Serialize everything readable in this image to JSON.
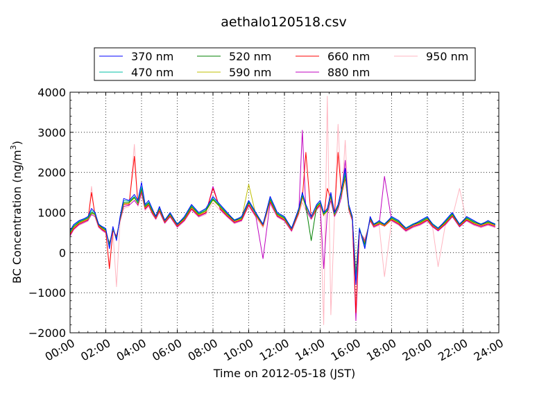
{
  "chart_data": {
    "type": "line",
    "title": "aethalo120518.csv",
    "xlabel": "Time on 2012-05-18 (JST)",
    "ylabel_main": "BC Concentration (ng/m",
    "ylabel_sup": "3",
    "ylabel_close": ")",
    "xlim": [
      0,
      24
    ],
    "ylim": [
      -2000,
      4000
    ],
    "x_ticks": [
      0,
      2,
      4,
      6,
      8,
      10,
      12,
      14,
      16,
      18,
      20,
      22,
      24
    ],
    "x_tick_labels": [
      "00:00",
      "02:00",
      "04:00",
      "06:00",
      "08:00",
      "10:00",
      "12:00",
      "14:00",
      "16:00",
      "18:00",
      "20:00",
      "22:00",
      "24:00"
    ],
    "y_ticks": [
      -2000,
      -1000,
      0,
      1000,
      2000,
      3000,
      4000
    ],
    "y_tick_labels": [
      "−2000",
      "−1000",
      "0",
      "1000",
      "2000",
      "3000",
      "4000"
    ],
    "grid": true,
    "legend_position": "top",
    "x_hours": [
      0.0,
      0.2,
      0.5,
      0.8,
      1.0,
      1.2,
      1.4,
      1.6,
      1.8,
      2.0,
      2.2,
      2.4,
      2.6,
      2.8,
      3.0,
      3.3,
      3.6,
      3.8,
      4.0,
      4.2,
      4.4,
      4.6,
      4.8,
      5.0,
      5.3,
      5.6,
      6.0,
      6.4,
      6.8,
      7.2,
      7.6,
      8.0,
      8.4,
      8.8,
      9.2,
      9.6,
      10.0,
      10.4,
      10.8,
      11.2,
      11.6,
      12.0,
      12.4,
      12.8,
      13.0,
      13.2,
      13.5,
      13.8,
      14.0,
      14.2,
      14.4,
      14.6,
      14.8,
      15.0,
      15.2,
      15.4,
      15.6,
      15.8,
      16.0,
      16.2,
      16.5,
      16.8,
      17.0,
      17.3,
      17.6,
      18.0,
      18.4,
      18.8,
      19.2,
      19.6,
      20.0,
      20.3,
      20.6,
      21.0,
      21.4,
      21.8,
      22.2,
      22.6,
      23.0,
      23.4,
      23.8
    ],
    "series": [
      {
        "name": "370 nm",
        "color": "#0000ff",
        "values": [
          550,
          700,
          800,
          850,
          900,
          1100,
          1000,
          700,
          650,
          600,
          100,
          650,
          300,
          900,
          1350,
          1300,
          1450,
          1300,
          1750,
          1200,
          1300,
          1100,
          900,
          1150,
          800,
          1000,
          700,
          900,
          1200,
          1000,
          1100,
          1400,
          1200,
          1000,
          800,
          900,
          1300,
          1000,
          700,
          1400,
          1000,
          900,
          600,
          1100,
          1500,
          1200,
          900,
          1200,
          1300,
          1000,
          1100,
          1500,
          1000,
          1200,
          1600,
          2100,
          1200,
          900,
          -800,
          600,
          100,
          900,
          700,
          800,
          700,
          900,
          800,
          600,
          700,
          800,
          900,
          700,
          600,
          800,
          1000,
          700,
          900,
          800,
          700,
          800,
          700
        ]
      },
      {
        "name": "470 nm",
        "color": "#00bfa5",
        "values": [
          520,
          680,
          780,
          840,
          880,
          1050,
          980,
          720,
          640,
          580,
          150,
          620,
          320,
          880,
          1300,
          1280,
          1400,
          1260,
          1650,
          1180,
          1260,
          1080,
          920,
          1120,
          820,
          980,
          720,
          880,
          1180,
          980,
          1080,
          1360,
          1180,
          980,
          820,
          880,
          1280,
          980,
          720,
          1360,
          980,
          880,
          620,
          1080,
          1460,
          1180,
          880,
          1180,
          1260,
          980,
          1080,
          1460,
          980,
          1180,
          1560,
          2000,
          1180,
          880,
          -700,
          620,
          150,
          880,
          720,
          780,
          720,
          880,
          780,
          620,
          720,
          780,
          880,
          720,
          620,
          780,
          980,
          720,
          880,
          780,
          720,
          780,
          720
        ]
      },
      {
        "name": "520 nm",
        "color": "#008000",
        "values": [
          500,
          650,
          760,
          820,
          860,
          1000,
          960,
          700,
          620,
          560,
          200,
          600,
          350,
          860,
          1250,
          1250,
          1380,
          1240,
          1600,
          1150,
          1240,
          1050,
          900,
          1100,
          800,
          960,
          700,
          860,
          1150,
          960,
          1050,
          1330,
          1150,
          960,
          800,
          860,
          1250,
          960,
          700,
          1330,
          960,
          860,
          600,
          1050,
          1430,
          1150,
          300,
          1150,
          1240,
          960,
          1050,
          1430,
          960,
          1150,
          1530,
          1950,
          1150,
          860,
          -600,
          600,
          200,
          860,
          700,
          760,
          700,
          860,
          760,
          600,
          700,
          760,
          860,
          700,
          600,
          760,
          960,
          700,
          860,
          760,
          700,
          760,
          700
        ]
      },
      {
        "name": "590 nm",
        "color": "#bfbf00",
        "values": [
          480,
          630,
          740,
          800,
          840,
          980,
          940,
          680,
          600,
          540,
          220,
          580,
          370,
          840,
          1220,
          1230,
          1360,
          1220,
          1580,
          1130,
          1220,
          1030,
          880,
          1080,
          780,
          940,
          680,
          840,
          1130,
          940,
          1030,
          1310,
          1130,
          940,
          780,
          840,
          1700,
          940,
          680,
          1310,
          940,
          840,
          580,
          1030,
          1400,
          1130,
          880,
          1130,
          1220,
          940,
          1030,
          1400,
          940,
          1130,
          1500,
          1900,
          1130,
          840,
          -500,
          580,
          220,
          840,
          680,
          740,
          680,
          840,
          740,
          580,
          680,
          740,
          840,
          680,
          580,
          740,
          940,
          680,
          840,
          740,
          680,
          740,
          680
        ]
      },
      {
        "name": "660 nm",
        "color": "#ff0000",
        "values": [
          450,
          600,
          720,
          780,
          820,
          1500,
          920,
          660,
          580,
          520,
          -400,
          560,
          400,
          820,
          1200,
          1200,
          2400,
          1200,
          1550,
          1100,
          1200,
          1000,
          860,
          1050,
          760,
          920,
          660,
          820,
          1100,
          920,
          1000,
          1600,
          1100,
          920,
          760,
          820,
          1200,
          920,
          660,
          1280,
          920,
          820,
          560,
          1000,
          1350,
          2500,
          860,
          1100,
          1200,
          920,
          1600,
          1350,
          920,
          2500,
          1450,
          1850,
          1100,
          820,
          -1500,
          560,
          250,
          820,
          660,
          720,
          660,
          820,
          720,
          560,
          660,
          720,
          820,
          660,
          560,
          720,
          920,
          660,
          820,
          720,
          660,
          720,
          660
        ]
      },
      {
        "name": "880 nm",
        "color": "#bf00bf",
        "values": [
          420,
          580,
          700,
          760,
          800,
          950,
          900,
          640,
          560,
          500,
          250,
          540,
          420,
          800,
          1150,
          1180,
          1300,
          1180,
          1500,
          1080,
          1180,
          980,
          840,
          1030,
          740,
          900,
          640,
          800,
          1080,
          900,
          980,
          1650,
          1080,
          900,
          740,
          800,
          1180,
          900,
          -150,
          1250,
          900,
          800,
          540,
          980,
          3050,
          1080,
          840,
          1080,
          1180,
          -400,
          980,
          1300,
          900,
          1080,
          1400,
          2300,
          1080,
          800,
          -1700,
          540,
          300,
          800,
          640,
          700,
          1900,
          800,
          700,
          540,
          640,
          700,
          800,
          640,
          540,
          700,
          900,
          640,
          800,
          700,
          640,
          700,
          640
        ]
      },
      {
        "name": "950 nm",
        "color": "#ffb6c1",
        "values": [
          400,
          560,
          680,
          740,
          780,
          1650,
          880,
          620,
          540,
          480,
          -300,
          520,
          -850,
          780,
          1100,
          1150,
          2700,
          1150,
          1450,
          1050,
          1150,
          950,
          820,
          1000,
          720,
          880,
          620,
          780,
          1050,
          880,
          950,
          1250,
          1050,
          880,
          720,
          780,
          1150,
          880,
          620,
          1200,
          880,
          780,
          520,
          950,
          1250,
          1050,
          820,
          1050,
          1150,
          -1800,
          3900,
          -1550,
          880,
          3200,
          1350,
          2800,
          1050,
          780,
          -1400,
          520,
          350,
          780,
          620,
          680,
          -600,
          780,
          680,
          520,
          620,
          680,
          780,
          620,
          -350,
          680,
          880,
          1600,
          780,
          680,
          620,
          680,
          620
        ]
      }
    ]
  }
}
